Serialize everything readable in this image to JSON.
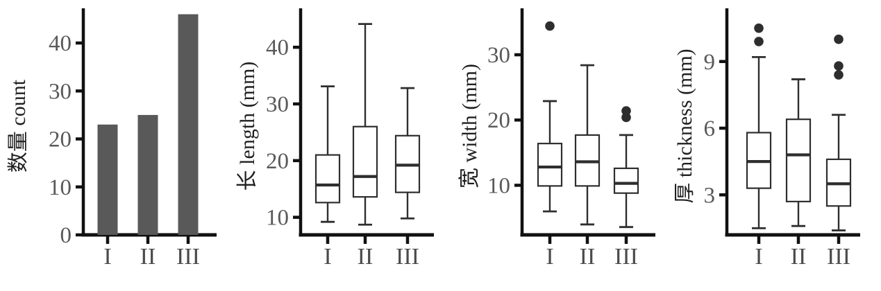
{
  "figure": {
    "background": "#ffffff",
    "categories": [
      "I",
      "II",
      "III"
    ],
    "colors": {
      "axis": "#111111",
      "tick_label": "#595959",
      "category_label": "#4a4a4a",
      "axis_label": "#1f1f1f",
      "bar_fill": "#595959",
      "box_stroke": "#2e2e2e",
      "box_fill": "#ffffff",
      "median": "#2e2e2e",
      "outlier": "#2e2e2e"
    }
  },
  "chart_data": [
    {
      "type": "bar",
      "title": "",
      "xlabel": "",
      "ylabel": "数量 count",
      "categories": [
        "I",
        "II",
        "III"
      ],
      "values": [
        23,
        25,
        46
      ],
      "yticks": [
        0,
        10,
        20,
        30,
        40
      ],
      "ylim": [
        0,
        46.8
      ],
      "grid": false,
      "legend": false
    },
    {
      "type": "box",
      "title": "",
      "xlabel": "",
      "ylabel": "长 length (mm)",
      "categories": [
        "I",
        "II",
        "III"
      ],
      "yticks": [
        10,
        20,
        30,
        40
      ],
      "ylim": [
        6.9,
        46.5
      ],
      "grid": false,
      "legend": false,
      "series": [
        {
          "name": "I",
          "min": 9.2,
          "q1": 12.6,
          "median": 15.7,
          "q3": 21.0,
          "max": 33.1,
          "outliers": []
        },
        {
          "name": "II",
          "min": 8.7,
          "q1": 13.6,
          "median": 17.2,
          "q3": 26.0,
          "max": 44.1,
          "outliers": []
        },
        {
          "name": "III",
          "min": 9.8,
          "q1": 14.4,
          "median": 19.2,
          "q3": 24.4,
          "max": 32.8,
          "outliers": []
        }
      ]
    },
    {
      "type": "box",
      "title": "",
      "xlabel": "",
      "ylabel": "宽 width (mm)",
      "categories": [
        "I",
        "II",
        "III"
      ],
      "yticks": [
        10,
        20,
        30
      ],
      "ylim": [
        2.4,
        36.8
      ],
      "grid": false,
      "legend": false,
      "series": [
        {
          "name": "I",
          "min": 6.0,
          "q1": 9.9,
          "median": 12.8,
          "q3": 16.4,
          "max": 22.9,
          "outliers": [
            34.4
          ]
        },
        {
          "name": "II",
          "min": 4.0,
          "q1": 9.9,
          "median": 13.6,
          "q3": 17.7,
          "max": 28.4,
          "outliers": []
        },
        {
          "name": "III",
          "min": 3.6,
          "q1": 8.8,
          "median": 10.3,
          "q3": 12.6,
          "max": 17.7,
          "outliers": [
            21.4,
            20.4
          ]
        }
      ]
    },
    {
      "type": "box",
      "title": "",
      "xlabel": "",
      "ylabel": "厚 thickness (mm)",
      "categories": [
        "I",
        "II",
        "III"
      ],
      "yticks": [
        3,
        6,
        9
      ],
      "ylim": [
        1.2,
        11.3
      ],
      "grid": false,
      "legend": false,
      "series": [
        {
          "name": "I",
          "min": 1.5,
          "q1": 3.3,
          "median": 4.5,
          "q3": 5.8,
          "max": 9.2,
          "outliers": [
            10.5,
            9.9
          ]
        },
        {
          "name": "II",
          "min": 1.6,
          "q1": 2.7,
          "median": 4.8,
          "q3": 6.4,
          "max": 8.2,
          "outliers": []
        },
        {
          "name": "III",
          "min": 1.4,
          "q1": 2.5,
          "median": 3.5,
          "q3": 4.6,
          "max": 6.6,
          "outliers": [
            10.0,
            8.8,
            8.4
          ]
        }
      ]
    }
  ]
}
